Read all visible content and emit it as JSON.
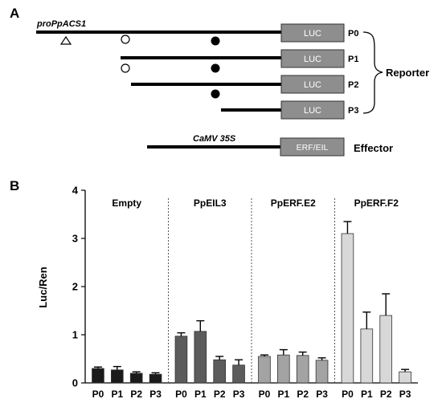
{
  "panel_a": {
    "label": "A",
    "promoter_label": "proPpACS1",
    "reporter_box": "LUC",
    "constructs": [
      "P0",
      "P1",
      "P2",
      "P3"
    ],
    "reporter_label": "Reporter",
    "effector_promoter": "CaMV 35S",
    "effector_box": "ERF/EIL",
    "effector_label": "Effector"
  },
  "panel_b": {
    "label": "B"
  },
  "chart_data": {
    "type": "bar",
    "ylabel": "Luc/Ren",
    "xlabel": "",
    "ylim": [
      0,
      4
    ],
    "yticks": [
      "0",
      "1",
      "2",
      "3",
      "4"
    ],
    "categories": [
      "P0",
      "P1",
      "P2",
      "P3"
    ],
    "groups": [
      {
        "name": "Empty",
        "color": "#1a1a1a",
        "values": [
          0.3,
          0.27,
          0.2,
          0.18
        ],
        "errors": [
          0.03,
          0.07,
          0.03,
          0.03
        ]
      },
      {
        "name": "PpEIL3",
        "color": "#5c5c5c",
        "values": [
          0.97,
          1.07,
          0.48,
          0.37
        ],
        "errors": [
          0.07,
          0.22,
          0.07,
          0.11
        ]
      },
      {
        "name": "PpERF.E2",
        "color": "#a3a3a3",
        "values": [
          0.55,
          0.58,
          0.57,
          0.47
        ],
        "errors": [
          0.03,
          0.11,
          0.07,
          0.05
        ]
      },
      {
        "name": "PpERF.F2",
        "color": "#d8d8d8",
        "values": [
          3.1,
          1.12,
          1.4,
          0.23
        ],
        "errors": [
          0.25,
          0.35,
          0.45,
          0.05
        ]
      }
    ]
  }
}
